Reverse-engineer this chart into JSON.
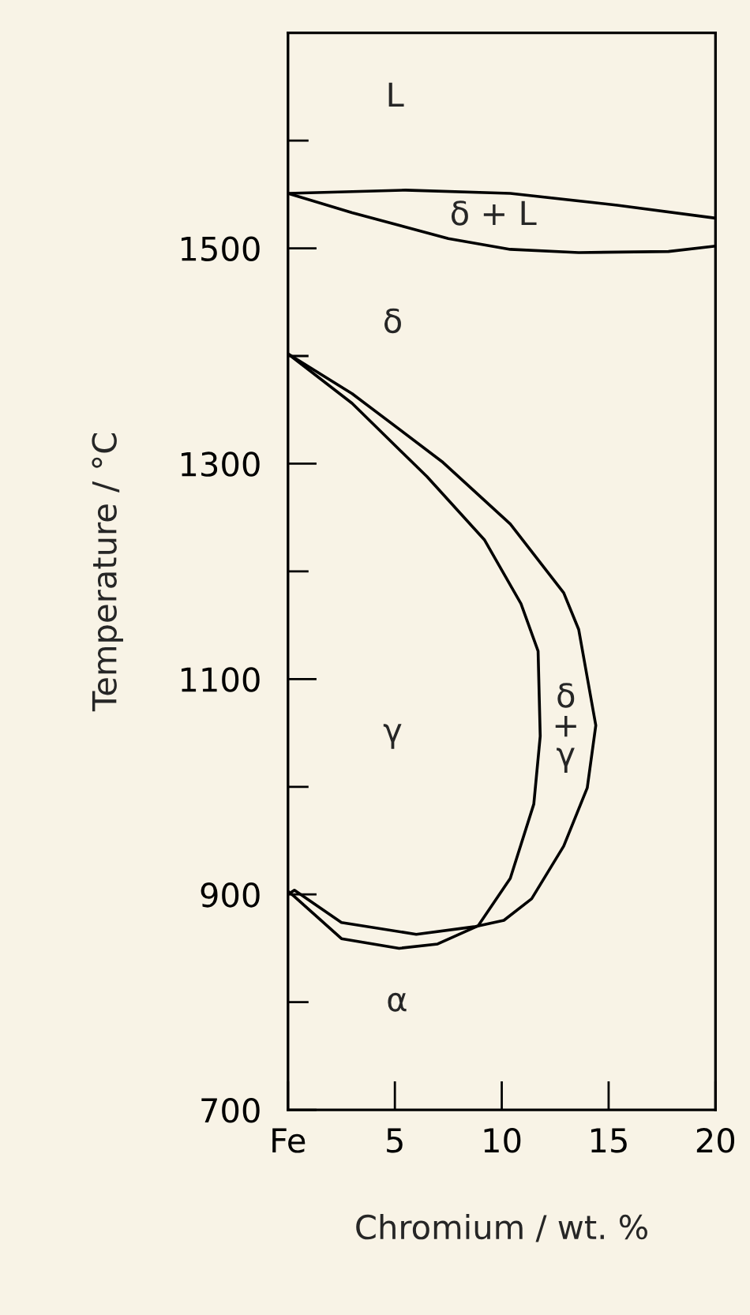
{
  "chart_data": {
    "type": "line",
    "xlabel": "Chromium / wt. %",
    "ylabel": "Temperature / °C",
    "xlim": [
      0,
      20
    ],
    "xticks": [
      {
        "value": 0,
        "label": "Fe"
      },
      5,
      10,
      15,
      20
    ],
    "ylim": [
      700,
      1700
    ],
    "yticks": [
      700,
      {
        "value": 800,
        "label": null
      },
      900,
      {
        "value": 1000,
        "label": null
      },
      1100,
      {
        "value": 1200,
        "label": null
      },
      1300,
      {
        "value": 1400,
        "label": null
      },
      1500,
      {
        "value": 1600,
        "label": null
      }
    ],
    "grid": false,
    "legend": false,
    "marker": "none",
    "line_style": "solid",
    "series": [
      {
        "color": "#000000",
        "x": [
          0,
          5.5,
          10.4,
          15.4,
          20
        ],
        "values": [
          1551,
          1554,
          1551,
          1540,
          1528
        ]
      },
      {
        "color": "#000000",
        "x": [
          0,
          3,
          7.5,
          10.4,
          13.6,
          17.8,
          20
        ],
        "values": [
          1551,
          1533,
          1509,
          1499,
          1496,
          1497,
          1502
        ]
      },
      {
        "color": "#000000",
        "x": [
          0,
          3.0,
          7.2,
          10.4,
          12.9,
          13.6,
          14.4,
          14.0,
          12.9,
          11.4,
          10.1,
          8.7,
          6.0,
          2.5,
          0.3,
          0
        ],
        "values": [
          1402,
          1365,
          1302,
          1244,
          1180,
          1146,
          1057,
          999,
          945,
          896,
          876,
          870,
          863,
          874,
          904,
          900
        ]
      },
      {
        "color": "#000000",
        "x": [
          0,
          3.0,
          6.5,
          9.2,
          10.9,
          11.7,
          11.8,
          11.5,
          10.4,
          8.9,
          7.0,
          5.2,
          2.5,
          0.3,
          0
        ],
        "values": [
          1402,
          1356,
          1288,
          1229,
          1170,
          1126,
          1047,
          984,
          915,
          871,
          854,
          850,
          859,
          898,
          903
        ]
      }
    ],
    "annotations": [
      "L",
      "δ + L",
      "δ",
      "γ",
      "δ\n+\nγ",
      "α"
    ]
  }
}
